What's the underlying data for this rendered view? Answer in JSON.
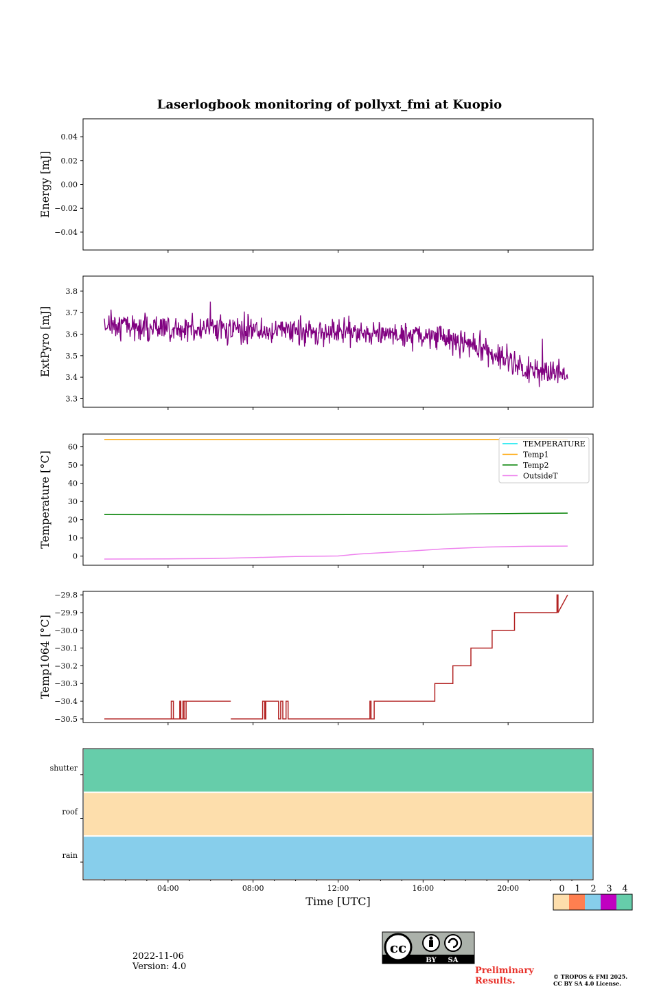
{
  "title": "Laserlogbook monitoring of pollyxt_fmi at Kuopio",
  "chart_data": [
    {
      "type": "line",
      "id": "energy",
      "ylabel": "Energy [mJ]",
      "ylim": [
        -0.055,
        0.055
      ],
      "yticks": [
        0.04,
        0.02,
        0.0,
        -0.02,
        -0.04
      ],
      "ytick_labels": [
        "0.04",
        "0.02",
        "0.00",
        "−0.02",
        "−0.04"
      ],
      "series": []
    },
    {
      "type": "line",
      "id": "extpyro",
      "ylabel": "ExtPyro [mJ]",
      "ylim": [
        3.26,
        3.87
      ],
      "yticks": [
        3.8,
        3.7,
        3.6,
        3.5,
        3.4,
        3.3
      ],
      "ytick_labels": [
        "3.8",
        "3.7",
        "3.6",
        "3.5",
        "3.4",
        "3.3"
      ],
      "series": [
        {
          "name": "ExtPyro",
          "color": "#800080",
          "trend_x": [
            1.0,
            4.0,
            8.0,
            12.0,
            16.0,
            18.0,
            19.5,
            21.0,
            22.8
          ],
          "trend_y": [
            3.65,
            3.63,
            3.62,
            3.61,
            3.6,
            3.56,
            3.5,
            3.43,
            3.41
          ],
          "noise_amplitude": 0.09
        }
      ]
    },
    {
      "type": "line",
      "id": "temperature",
      "ylabel": "Temperature [°C]",
      "ylim": [
        -5,
        67
      ],
      "yticks": [
        60,
        50,
        40,
        30,
        20,
        10,
        0
      ],
      "ytick_labels": [
        "60",
        "50",
        "40",
        "30",
        "20",
        "10",
        "0"
      ],
      "legend_position": "top-right",
      "series": [
        {
          "name": "TEMPERATURE",
          "color": "#00e5ee",
          "x": [],
          "y": []
        },
        {
          "name": "Temp1",
          "color": "#ffa500",
          "x": [
            1.0,
            22.8
          ],
          "y": [
            64,
            64
          ]
        },
        {
          "name": "Temp2",
          "color": "#008000",
          "x": [
            1.0,
            8.0,
            16.0,
            20.0,
            22.8
          ],
          "y": [
            22.8,
            22.7,
            22.9,
            23.4,
            23.6
          ]
        },
        {
          "name": "OutsideT",
          "color": "#ee82ee",
          "x": [
            1.0,
            4.0,
            6.0,
            8.0,
            10.0,
            12.0,
            13.0,
            15.0,
            17.0,
            19.0,
            21.0,
            22.8
          ],
          "y": [
            -1.6,
            -1.5,
            -1.3,
            -0.8,
            -0.2,
            0.1,
            1.2,
            2.5,
            4.0,
            5.0,
            5.4,
            5.5
          ]
        }
      ]
    },
    {
      "type": "line",
      "id": "temp1064",
      "ylabel": "Temp1064 [°C]",
      "ylim": [
        -30.52,
        -29.78
      ],
      "yticks": [
        -29.8,
        -29.9,
        -30.0,
        -30.1,
        -30.2,
        -30.3,
        -30.4,
        -30.5
      ],
      "ytick_labels": [
        "−29.8",
        "−29.9",
        "−30.0",
        "−30.1",
        "−30.2",
        "−30.3",
        "−30.4",
        "−30.5"
      ],
      "series": [
        {
          "name": "Temp1064",
          "color": "#b22222",
          "segments": [
            {
              "x": [
                1.0,
                4.15,
                4.15,
                4.25,
                4.25,
                4.15,
                4.15,
                4.55,
                4.55,
                4.6,
                4.6,
                4.7,
                4.7,
                4.75,
                4.75,
                4.85,
                4.85,
                4.75,
                4.75,
                6.95
              ],
              "y": [
                -30.5,
                -30.5,
                -30.4,
                -30.4,
                -30.5,
                -30.5,
                -30.5,
                -30.5,
                -30.4,
                -30.4,
                -30.5,
                -30.5,
                -30.4,
                -30.4,
                -30.5,
                -30.5,
                -30.4,
                -30.4,
                -30.4,
                -30.4
              ]
            },
            {
              "x": [
                6.95,
                8.45,
                8.45,
                8.55,
                8.55,
                8.6,
                8.6,
                9.2,
                9.2,
                9.3,
                9.3,
                9.4,
                9.4,
                9.55,
                9.55,
                9.65,
                9.65,
                13.5,
                13.5,
                13.55,
                13.55,
                13.7,
                13.7,
                16.55,
                16.55,
                16.6,
                16.6,
                17.4,
                17.4,
                18.25,
                18.25,
                18.3,
                18.3,
                19.25,
                19.25,
                20.3,
                20.3,
                22.3,
                22.3,
                22.35,
                22.35,
                22.8
              ],
              "y": [
                -30.5,
                -30.5,
                -30.4,
                -30.4,
                -30.5,
                -30.5,
                -30.4,
                -30.4,
                -30.5,
                -30.5,
                -30.4,
                -30.4,
                -30.5,
                -30.5,
                -30.4,
                -30.4,
                -30.5,
                -30.5,
                -30.4,
                -30.4,
                -30.5,
                -30.5,
                -30.4,
                -30.4,
                -30.3,
                -30.3,
                -30.3,
                -30.3,
                -30.2,
                -30.2,
                -30.1,
                -30.1,
                -30.1,
                -30.1,
                -30.0,
                -30.0,
                -29.9,
                -29.9,
                -29.8,
                -29.8,
                -29.9,
                -29.8
              ]
            }
          ]
        }
      ]
    },
    {
      "type": "heatmap",
      "id": "status",
      "rows": [
        "shutter",
        "roof",
        "rain"
      ],
      "row_values": [
        4,
        0,
        2
      ],
      "xlabel": "Time [UTC]",
      "xlim": [
        0,
        24
      ],
      "xticks": [
        4,
        8,
        12,
        16,
        20
      ],
      "xtick_labels": [
        "04:00",
        "08:00",
        "12:00",
        "16:00",
        "20:00"
      ],
      "colorbar": {
        "labels": [
          "0",
          "1",
          "2",
          "3",
          "4"
        ],
        "colors": [
          "#fddeac",
          "#ff7f50",
          "#87ceeb",
          "#c000c0",
          "#66cdaa"
        ]
      }
    }
  ],
  "footer": {
    "date": "2022-11-06",
    "version": "Version: 4.0",
    "preliminary_line1": "Preliminary",
    "preliminary_line2": "Results.",
    "copyright_line1": "© TROPOS & FMI 2025.",
    "copyright_line2": "CC BY SA 4.0 License.",
    "license_badge": {
      "text": "cc",
      "by": "BY",
      "sa": "SA"
    }
  }
}
